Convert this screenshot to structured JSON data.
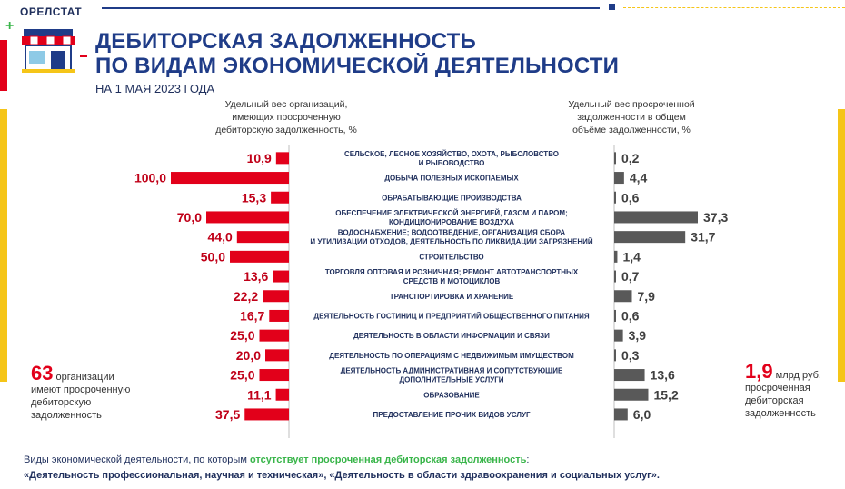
{
  "header": {
    "brand": "ОРЕЛСТАТ",
    "title_line1": "ДЕБИТОРСКАЯ ЗАДОЛЖЕННОСТЬ",
    "title_line2": "ПО ВИДАМ ЭКОНОМИЧЕСКОЙ ДЕЯТЕЛЬНОСТИ",
    "subtitle": "НА 1 МАЯ 2023 ГОДА"
  },
  "colors": {
    "red": "#e2001a",
    "gray": "#595959",
    "navy": "#1f3c88",
    "yellow": "#f5c518",
    "green": "#39b54a"
  },
  "chart_data": {
    "type": "bar",
    "left_header": [
      "Удельный вес организаций,",
      "имеющих просроченную",
      "дебиторскую задолженность, %"
    ],
    "right_header": [
      "Удельный вес просроченной",
      "задолженности в общем",
      "объёме задолженности, %"
    ],
    "categories": [
      [
        "СЕЛЬСКОЕ, ЛЕСНОЕ ХОЗЯЙСТВО, ОХОТА, РЫБОЛОВСТВО",
        "И РЫБОВОДСТВО"
      ],
      [
        "ДОБЫЧА ПОЛЕЗНЫХ ИСКОПАЕМЫХ"
      ],
      [
        "ОБРАБАТЫВАЮЩИЕ ПРОИЗВОДСТВА"
      ],
      [
        "ОБЕСПЕЧЕНИЕ ЭЛЕКТРИЧЕСКОЙ ЭНЕРГИЕЙ, ГАЗОМ И ПАРОМ;",
        "КОНДИЦИОНИРОВАНИЕ ВОЗДУХА"
      ],
      [
        "ВОДОСНАБЖЕНИЕ; ВОДООТВЕДЕНИЕ, ОРГАНИЗАЦИЯ СБОРА",
        "И УТИЛИЗАЦИИ ОТХОДОВ, ДЕЯТЕЛЬНОСТЬ ПО ЛИКВИДАЦИИ ЗАГРЯЗНЕНИЙ"
      ],
      [
        "СТРОИТЕЛЬСТВО"
      ],
      [
        "ТОРГОВЛЯ ОПТОВАЯ И РОЗНИЧНАЯ; РЕМОНТ АВТОТРАНСПОРТНЫХ",
        "СРЕДСТВ И МОТОЦИКЛОВ"
      ],
      [
        "ТРАНСПОРТИРОВКА И ХРАНЕНИЕ"
      ],
      [
        "ДЕЯТЕЛЬНОСТЬ ГОСТИНИЦ И ПРЕДПРИЯТИЙ ОБЩЕСТВЕННОГО ПИТАНИЯ"
      ],
      [
        "ДЕЯТЕЛЬНОСТЬ В ОБЛАСТИ ИНФОРМАЦИИ И СВЯЗИ"
      ],
      [
        "ДЕЯТЕЛЬНОСТЬ ПО ОПЕРАЦИЯМ С НЕДВИЖИМЫМ ИМУЩЕСТВОМ"
      ],
      [
        "ДЕЯТЕЛЬНОСТЬ АДМИНИСТРАТИВНАЯ И СОПУТСТВУЮЩИЕ",
        "ДОПОЛНИТЕЛЬНЫЕ УСЛУГИ"
      ],
      [
        "ОБРАЗОВАНИЕ"
      ],
      [
        "ПРЕДОСТАВЛЕНИЕ ПРОЧИХ ВИДОВ УСЛУГ"
      ]
    ],
    "series": [
      {
        "values": [
          10.9,
          100.0,
          15.3,
          70.0,
          44.0,
          50.0,
          13.6,
          22.2,
          16.7,
          25.0,
          20.0,
          25.0,
          11.1,
          37.5
        ],
        "labels": [
          "10,9",
          "100,0",
          "15,3",
          "70,0",
          "44,0",
          "50,0",
          "13,6",
          "22,2",
          "16,7",
          "25,0",
          "20,0",
          "25,0",
          "11,1",
          "37,5"
        ],
        "color": "#e2001a"
      },
      {
        "values": [
          0.2,
          4.4,
          0.6,
          37.3,
          31.7,
          1.4,
          0.7,
          7.9,
          0.6,
          3.9,
          0.3,
          13.6,
          15.2,
          6.0
        ],
        "labels": [
          "0,2",
          "4,4",
          "0,6",
          "37,3",
          "31,7",
          "1,4",
          "0,7",
          "7,9",
          "0,6",
          "3,9",
          "0,3",
          "13,6",
          "15,2",
          "6,0"
        ],
        "color": "#595959"
      }
    ],
    "left_range": [
      0,
      100
    ],
    "right_range": [
      0,
      37.3
    ]
  },
  "left_note": {
    "number": "63",
    "line1": " организации",
    "line2": "имеют просроченную",
    "line3": "дебиторскую",
    "line4": "задолженность"
  },
  "right_note": {
    "number": "1,9",
    "unit": " млрд руб.",
    "line2": "просроченная",
    "line3": "дебиторская",
    "line4": "задолженность"
  },
  "footer": {
    "part1": "Виды экономической деятельности, по которым ",
    "part2": "отсутствует просроченная дебиторская задолженность",
    "part3": ":",
    "line2": "«Деятельность профессиональная, научная и техническая», «Деятельность в области здравоохранения и социальных услуг»."
  }
}
